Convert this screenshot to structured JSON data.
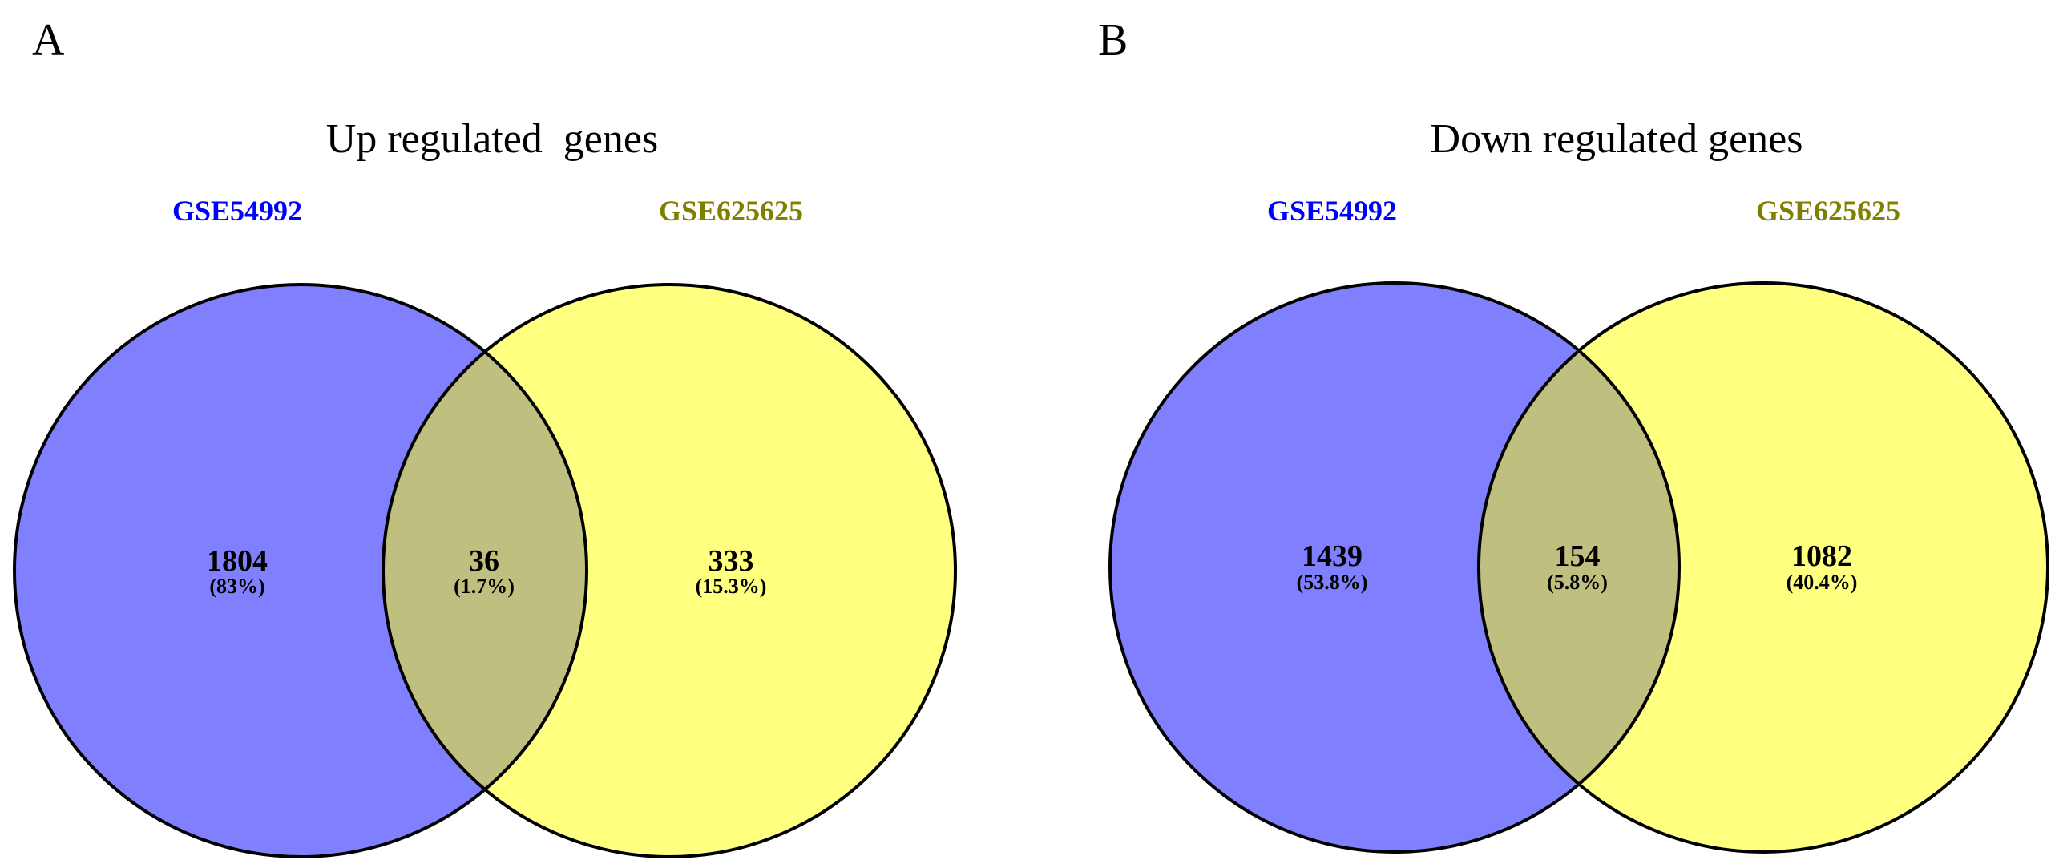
{
  "colors": {
    "left_set_fill": "#8080ff",
    "right_set_fill": "#ffff80",
    "overlap_fill": "#bfbf80",
    "left_label": "#0000ff",
    "right_label": "#808000"
  },
  "panels": [
    {
      "letter": "A",
      "title": "Up regulated  genes",
      "left_set": {
        "name": "GSE54992",
        "count": "1804",
        "percent": "(83%)"
      },
      "right_set": {
        "name": "GSE625625",
        "count": "333",
        "percent": "(15.3%)"
      },
      "overlap": {
        "count": "36",
        "percent": "(1.7%)"
      }
    },
    {
      "letter": "B",
      "title": "Down regulated genes",
      "left_set": {
        "name": "GSE54992",
        "count": "1439",
        "percent": "(53.8%)"
      },
      "right_set": {
        "name": "GSE625625",
        "count": "1082",
        "percent": "(40.4%)"
      },
      "overlap": {
        "count": "154",
        "percent": "(5.8%)"
      }
    }
  ]
}
